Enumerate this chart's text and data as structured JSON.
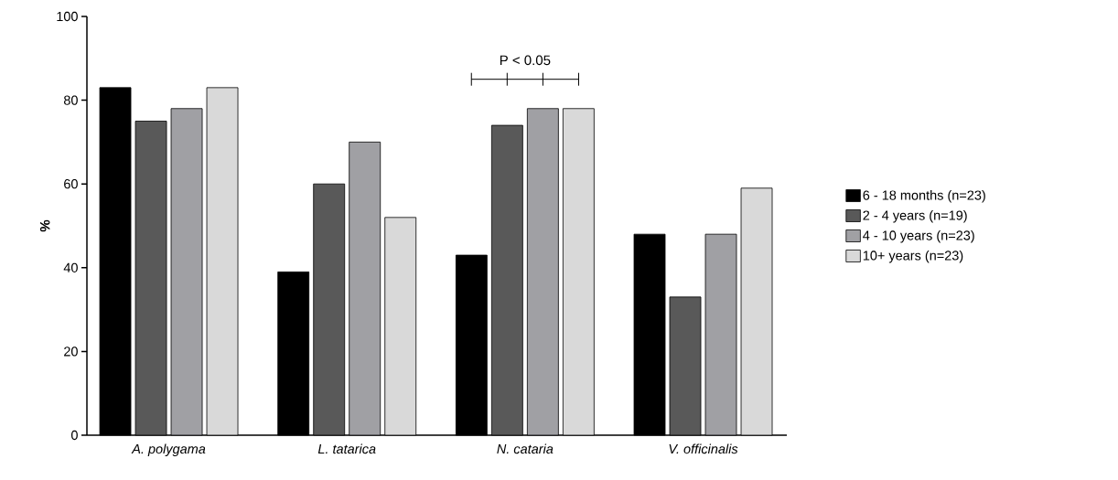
{
  "chart_data": {
    "type": "bar",
    "ylabel": "%",
    "categories": [
      "A. polygama",
      "L. tatarica",
      "N. cataria",
      "V. officinalis"
    ],
    "series": [
      {
        "name": "6 - 18 months (n=23)",
        "color": "#000000",
        "values": [
          83,
          39,
          43,
          48
        ]
      },
      {
        "name": "2 - 4 years (n=19)",
        "color": "#595959",
        "values": [
          75,
          60,
          74,
          33
        ]
      },
      {
        "name": "4 - 10 years (n=23)",
        "color": "#a0a0a4",
        "values": [
          78,
          70,
          78,
          48
        ]
      },
      {
        "name": "10+ years (n=23)",
        "color": "#d9d9d9",
        "values": [
          83,
          52,
          78,
          59
        ]
      }
    ],
    "ylim": [
      0,
      100
    ],
    "yticks": [
      0,
      20,
      40,
      60,
      80,
      100
    ],
    "grid": false,
    "legend": "right",
    "annotations": [
      "P < 0.05"
    ]
  }
}
